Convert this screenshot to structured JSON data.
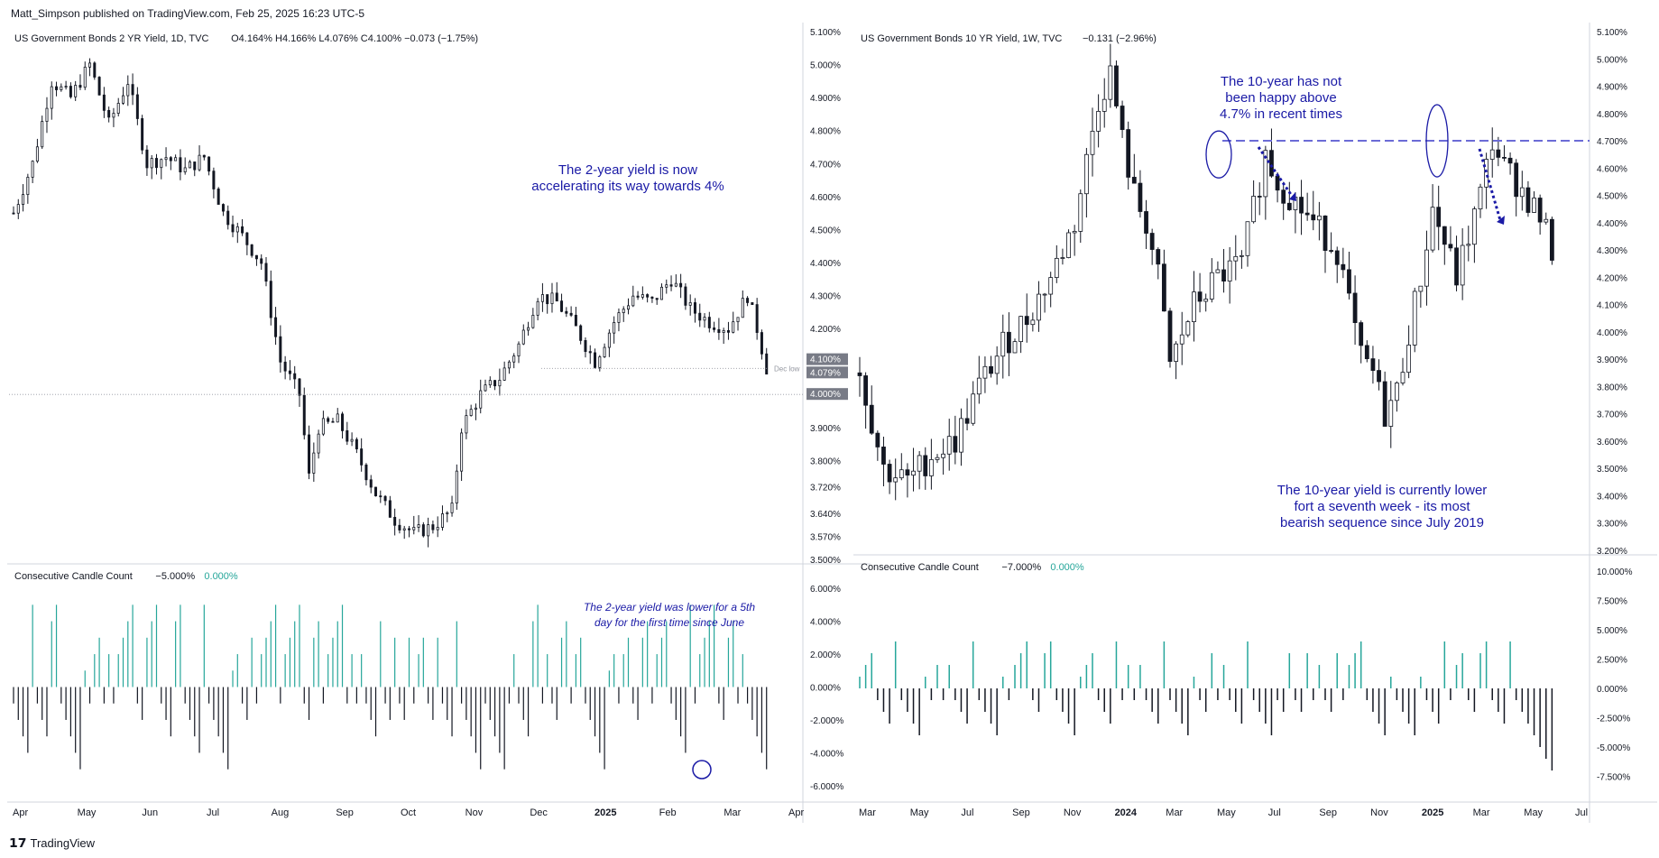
{
  "header": {
    "published": "Matt_Simpson published on TradingView.com, Feb 25, 2025 16:23 UTC-5"
  },
  "footer": {
    "brand": "TradingView",
    "logo_icon": "tradingview-logo-icon"
  },
  "colors": {
    "up": "#26a69a",
    "down": "#131722",
    "annotation": "#1a1aa6",
    "dash": "#6b6bd6",
    "grid": "#f0f3fa"
  },
  "chart_data": [
    {
      "type": "candlestick",
      "title": "US Government Bonds 2 YR Yield, 1D, TVC",
      "ohlc_label": "O4.164%  H4.166%  L4.076%  C4.100%  −0.073 (−1.75%)",
      "price_ticks": [
        "5.100%",
        "5.000%",
        "4.900%",
        "4.800%",
        "4.700%",
        "4.600%",
        "4.500%",
        "4.400%",
        "4.300%",
        "4.200%",
        "3.900%",
        "3.800%",
        "3.720%",
        "3.640%",
        "3.570%",
        "3.500%"
      ],
      "price_tags": [
        "4.100%",
        "4.079%",
        "4.000%"
      ],
      "dec_low_label": "Dec low",
      "ylim": [
        3.5,
        5.1
      ],
      "x_ticks": [
        "Apr",
        "May",
        "Jun",
        "Jul",
        "Aug",
        "Sep",
        "Oct",
        "Nov",
        "Dec",
        "2025",
        "Feb",
        "Mar",
        "Apr"
      ],
      "path_points": [
        [
          0,
          4.55
        ],
        [
          4,
          4.7
        ],
        [
          8,
          4.95
        ],
        [
          12,
          4.9
        ],
        [
          16,
          5.0
        ],
        [
          20,
          4.82
        ],
        [
          24,
          4.95
        ],
        [
          28,
          4.7
        ],
        [
          32,
          4.72
        ],
        [
          36,
          4.68
        ],
        [
          40,
          4.72
        ],
        [
          44,
          4.55
        ],
        [
          48,
          4.48
        ],
        [
          52,
          4.4
        ],
        [
          56,
          4.1
        ],
        [
          60,
          4.0
        ],
        [
          62,
          3.75
        ],
        [
          64,
          3.9
        ],
        [
          68,
          3.92
        ],
        [
          72,
          3.82
        ],
        [
          76,
          3.7
        ],
        [
          80,
          3.62
        ],
        [
          84,
          3.58
        ],
        [
          88,
          3.6
        ],
        [
          92,
          3.65
        ],
        [
          94,
          3.9
        ],
        [
          98,
          4.0
        ],
        [
          102,
          4.05
        ],
        [
          106,
          4.15
        ],
        [
          110,
          4.3
        ],
        [
          114,
          4.28
        ],
        [
          118,
          4.2
        ],
        [
          122,
          4.1
        ],
        [
          126,
          4.22
        ],
        [
          130,
          4.3
        ],
        [
          134,
          4.28
        ],
        [
          138,
          4.35
        ],
        [
          142,
          4.26
        ],
        [
          146,
          4.22
        ],
        [
          150,
          4.2
        ],
        [
          154,
          4.3
        ],
        [
          156,
          4.2
        ],
        [
          158,
          4.08
        ]
      ],
      "annotations": [
        "The 2-year yield is now",
        "accelerating its way towards 4%"
      ],
      "indicator": {
        "label": "Consecutive Candle Count",
        "value_a": "−5.000%",
        "value_b": "0.000%",
        "ticks": [
          "6.000%",
          "4.000%",
          "2.000%",
          "0.000%",
          "-2.000%",
          "-4.000%",
          "-6.000%"
        ],
        "ylim": [
          -6.5,
          6.5
        ],
        "last": -5,
        "note": [
          "The 2-year yield was lower for a 5th",
          "day for the first time since June"
        ]
      }
    },
    {
      "type": "candlestick",
      "title": "US Government Bonds 10 YR Yield, 1W, TVC",
      "ohlc_label": "−0.131 (−2.96%)",
      "price_ticks": [
        "5.100%",
        "5.000%",
        "4.900%",
        "4.800%",
        "4.700%",
        "4.600%",
        "4.500%",
        "4.400%",
        "4.300%",
        "4.200%",
        "4.100%",
        "4.000%",
        "3.900%",
        "3.800%",
        "3.700%",
        "3.600%",
        "3.500%",
        "3.400%",
        "3.300%",
        "3.200%"
      ],
      "ylim": [
        3.2,
        5.1
      ],
      "level": 4.7,
      "x_ticks": [
        "Mar",
        "May",
        "Jul",
        "Sep",
        "Nov",
        "2024",
        "Mar",
        "May",
        "Jul",
        "Sep",
        "Nov",
        "2025",
        "Mar",
        "May",
        "Jul"
      ],
      "path_points": [
        [
          0,
          3.85
        ],
        [
          4,
          3.5
        ],
        [
          8,
          3.45
        ],
        [
          12,
          3.55
        ],
        [
          16,
          3.6
        ],
        [
          20,
          3.8
        ],
        [
          24,
          3.95
        ],
        [
          28,
          4.05
        ],
        [
          32,
          4.2
        ],
        [
          36,
          4.4
        ],
        [
          40,
          4.85
        ],
        [
          42,
          4.95
        ],
        [
          44,
          4.7
        ],
        [
          46,
          4.5
        ],
        [
          48,
          4.4
        ],
        [
          50,
          4.2
        ],
        [
          52,
          3.88
        ],
        [
          56,
          4.1
        ],
        [
          60,
          4.2
        ],
        [
          64,
          4.25
        ],
        [
          66,
          4.45
        ],
        [
          68,
          4.65
        ],
        [
          70,
          4.55
        ],
        [
          72,
          4.5
        ],
        [
          76,
          4.4
        ],
        [
          80,
          4.3
        ],
        [
          84,
          3.9
        ],
        [
          86,
          3.85
        ],
        [
          88,
          3.7
        ],
        [
          90,
          3.78
        ],
        [
          92,
          4.0
        ],
        [
          94,
          4.2
        ],
        [
          96,
          4.45
        ],
        [
          100,
          4.2
        ],
        [
          104,
          4.5
        ],
        [
          106,
          4.7
        ],
        [
          108,
          4.6
        ],
        [
          110,
          4.55
        ],
        [
          114,
          4.42
        ],
        [
          116,
          4.3
        ]
      ],
      "annotations_top": [
        "The 10-year has not",
        "been happy above",
        "4.7% in recent times"
      ],
      "annotations_bottom": [
        "The 10-year yield is currently lower",
        "fort a seventh week - its most",
        "bearish sequence since July 2019"
      ],
      "indicator": {
        "label": "Consecutive Candle Count",
        "value_a": "−7.000%",
        "value_b": "0.000%",
        "ticks": [
          "10.000%",
          "7.500%",
          "5.000%",
          "2.500%",
          "0.000%",
          "-2.500%",
          "-5.000%",
          "-7.500%"
        ],
        "ylim": [
          -9,
          10
        ],
        "last": -7
      }
    }
  ]
}
